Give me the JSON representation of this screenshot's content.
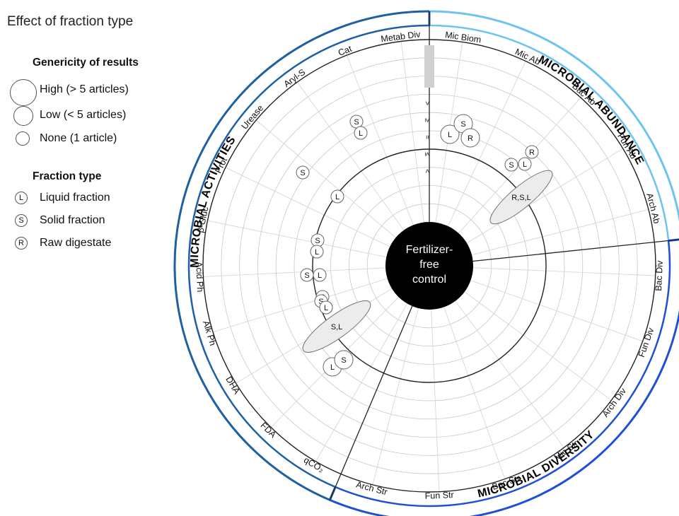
{
  "title": "Effect of fraction type",
  "legend": {
    "genericity": {
      "heading": "Genericity of results",
      "items": [
        {
          "label": "High (> 5 articles)",
          "size": "high"
        },
        {
          "label": "Low (< 5 articles)",
          "size": "low"
        },
        {
          "label": "None (1 article)",
          "size": "none"
        }
      ]
    },
    "fraction": {
      "heading": "Fraction type",
      "items": [
        {
          "letter": "L",
          "label": "Liquid fraction"
        },
        {
          "letter": "S",
          "label": "Solid fraction"
        },
        {
          "letter": "R",
          "label": "Raw digestate"
        }
      ]
    }
  },
  "center": {
    "lines": [
      "Fertilizer-",
      "free",
      "control"
    ]
  },
  "scale_symbols": [
    ">",
    "≥",
    "=",
    "≤",
    "<"
  ],
  "sectors": [
    {
      "title": "MICROBIAL ABUNDANCE",
      "color": "#6ec3ef",
      "axes": [
        "Mic Biom",
        "Mic Ab",
        "Bac Ab",
        "Fun Ab",
        "Arch Ab"
      ]
    },
    {
      "title": "MICROBIAL DIVERSITY",
      "color": "#1e4fd6",
      "axes": [
        "Bac Div",
        "Fun Div",
        "Arch Div",
        "Mic Str",
        "Bac Str",
        "Fun Str",
        "Arch Str"
      ]
    },
    {
      "title": "MICROBIAL ACTIVITIES",
      "color": "#1f5fa3",
      "axes": [
        "qCO₂",
        "FDA",
        "DHA",
        "Alk Ph",
        "Acid Ph",
        "β-Gluc",
        "Prot",
        "Urease",
        "Aryl-S",
        "Cat",
        "Metab Div"
      ]
    }
  ],
  "markers": [
    {
      "letter": "L",
      "size": "low"
    },
    {
      "letter": "S",
      "size": "low"
    },
    {
      "letter": "R",
      "size": "low"
    },
    {
      "letter": "S",
      "size": "none"
    },
    {
      "letter": "L",
      "size": "none"
    },
    {
      "letter": "R",
      "size": "none"
    },
    {
      "letter": "S",
      "size": "none"
    },
    {
      "letter": "L",
      "size": "none"
    },
    {
      "letter": "S",
      "size": "none"
    },
    {
      "letter": "L",
      "size": "none"
    },
    {
      "letter": "S",
      "size": "none"
    },
    {
      "letter": "L",
      "size": "none"
    },
    {
      "letter": "S",
      "size": "none"
    },
    {
      "letter": "L",
      "size": "none"
    },
    {
      "letter": "S",
      "size": "none"
    },
    {
      "letter": "L",
      "size": "none"
    },
    {
      "letter": "S",
      "size": "none"
    },
    {
      "letter": "L",
      "size": "none"
    },
    {
      "letter": "L",
      "size": "low"
    },
    {
      "letter": "S",
      "size": "low"
    }
  ],
  "groups": [
    {
      "label": "R,S,L"
    },
    {
      "label": "S,L"
    }
  ]
}
